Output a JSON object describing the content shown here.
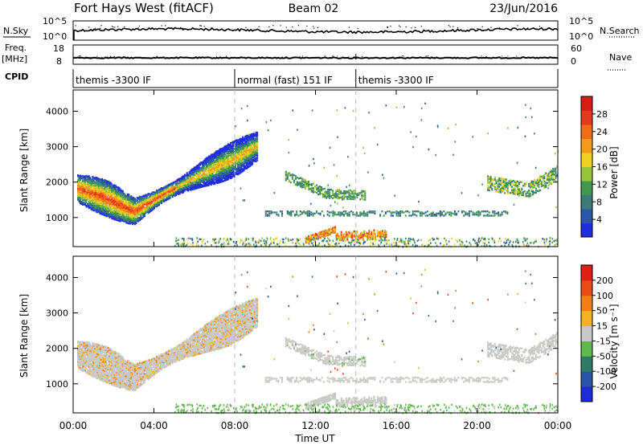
{
  "header": {
    "station": "Fort Hays West (fitACF)",
    "beam": "Beam 02",
    "date": "23/Jun/2016"
  },
  "top_panels": {
    "nsky_label": "N.Sky",
    "nsearch_label": "N.Search",
    "nsky_ticks": [
      "10^5",
      "10^0"
    ],
    "nsearch_ticks": [
      "10^5",
      "10^0"
    ],
    "freq_label": "Freq.",
    "freq_unit": "[MHz]",
    "freq_ticks": [
      "18",
      "8"
    ],
    "nave_label": "Nave",
    "nave_ticks": [
      "60",
      "0"
    ],
    "cpid_label": "CPID",
    "cpid_segments": [
      {
        "label": "themis -3300 IF",
        "start_h": 0,
        "end_h": 8
      },
      {
        "label": "normal (fast) 151 IF",
        "start_h": 8,
        "end_h": 14
      },
      {
        "label": "themis -3300 IF",
        "start_h": 14,
        "end_h": 24
      }
    ]
  },
  "x_axis": {
    "label": "Time UT",
    "ticks": [
      "00:00",
      "04:00",
      "08:00",
      "12:00",
      "16:00",
      "20:00",
      "00:00"
    ],
    "tick_hours": [
      0,
      4,
      8,
      12,
      16,
      20,
      24
    ]
  },
  "colorbars": {
    "power": {
      "label": "Power [dB]",
      "ticks": [
        "4",
        "8",
        "12",
        "16",
        "20",
        "24",
        "28"
      ],
      "colors": [
        "#1f2ee0",
        "#2a56a8",
        "#3c7a7a",
        "#3f9a4e",
        "#95c33a",
        "#f0d020",
        "#f39a1a",
        "#f06b1a",
        "#e23a1a",
        "#d81d14"
      ]
    },
    "velocity": {
      "label": "Velocity [m s⁻¹]",
      "ticks": [
        "200",
        "100",
        "50",
        "15",
        "-15",
        "-50",
        "-100",
        "-200"
      ],
      "colors": [
        "#1f2bd6",
        "#2a55a6",
        "#2f7a67",
        "#5fb84a",
        "#c8c8c4",
        "#f2b31f",
        "#f07f15",
        "#ea4b14",
        "#e01e14"
      ]
    }
  },
  "chart_data": [
    {
      "type": "heatmap",
      "title": "Power",
      "xlabel": "Time UT",
      "ylabel": "Slant Range [km]",
      "xlim_hours": [
        0,
        24
      ],
      "ylim_km": [
        180,
        4600
      ],
      "y_ticks": [
        "1000",
        "2000",
        "3000",
        "4000"
      ],
      "y_tick_values": [
        1000,
        2000,
        3000,
        4000
      ],
      "colorbar_range_db": [
        0,
        30
      ],
      "features": [
        {
          "name": "main band",
          "hours": [
            0.2,
            9.1
          ],
          "range_km": [
            [
              0.2,
              1850
            ],
            [
              1.5,
              1600
            ],
            [
              3.0,
              1200
            ],
            [
              4.5,
              1700
            ],
            [
              6.5,
              2300
            ],
            [
              8.0,
              2700
            ],
            [
              9.1,
              3050
            ]
          ],
          "peak_db": 28
        },
        {
          "name": "evening band",
          "hours": [
            10.5,
            14.5
          ],
          "range_km": [
            [
              10.5,
              2200
            ],
            [
              12.5,
              1700
            ],
            [
              14.5,
              1650
            ]
          ],
          "peak_db": 12
        },
        {
          "name": "1100 km band",
          "hours": [
            9.5,
            21.5
          ],
          "range_km": [
            [
              9.5,
              1150
            ],
            [
              21.5,
              1150
            ]
          ],
          "peak_db": 10
        },
        {
          "name": "late band",
          "hours": [
            20.5,
            24
          ],
          "range_km": [
            [
              20.5,
              2000
            ],
            [
              22.5,
              1800
            ],
            [
              24,
              2300
            ]
          ],
          "peak_db": 16
        },
        {
          "name": "near-range echoes",
          "hours": [
            11.5,
            15.5
          ],
          "range_km": [
            [
              11.5,
              500
            ],
            [
              15.5,
              450
            ]
          ],
          "peak_db": 24
        }
      ]
    },
    {
      "type": "heatmap",
      "title": "Velocity",
      "xlabel": "Time UT",
      "ylabel": "Slant Range [km]",
      "xlim_hours": [
        0,
        24
      ],
      "ylim_km": [
        180,
        4600
      ],
      "y_ticks": [
        "1000",
        "2000",
        "3000",
        "4000"
      ],
      "y_tick_values": [
        1000,
        2000,
        3000,
        4000
      ],
      "colorbar_range_ms": [
        -200,
        200
      ],
      "features": [
        {
          "name": "main band",
          "hours": [
            0.2,
            9.1
          ],
          "dominant_ms": 0,
          "secondary_ms": -40
        },
        {
          "name": "evening band",
          "hours": [
            10.5,
            14.5
          ],
          "dominant_ms": 0,
          "secondary_ms": 30
        },
        {
          "name": "1100 km band",
          "hours": [
            9.5,
            21.5
          ],
          "dominant_ms": 0
        },
        {
          "name": "late band",
          "hours": [
            20.5,
            24
          ],
          "dominant_ms": 0
        },
        {
          "name": "near-range echoes",
          "hours": [
            9.0,
            24
          ],
          "dominant_ms": 20
        }
      ]
    }
  ]
}
